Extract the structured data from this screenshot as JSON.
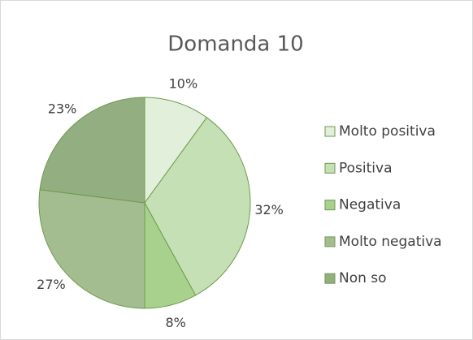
{
  "chart_data": {
    "type": "pie",
    "title": "Domanda 10",
    "categories": [
      "Molto positiva",
      "Positiva",
      "Negativa",
      "Molto negativa",
      "Non so"
    ],
    "values": [
      10,
      32,
      8,
      27,
      23
    ],
    "value_labels": [
      "10%",
      "32%",
      "8%",
      "27%",
      "23%"
    ],
    "colors": [
      "#e2efda",
      "#c5e0b4",
      "#a9d18e",
      "#a3bd91",
      "#93ae80"
    ],
    "legend": "right"
  }
}
